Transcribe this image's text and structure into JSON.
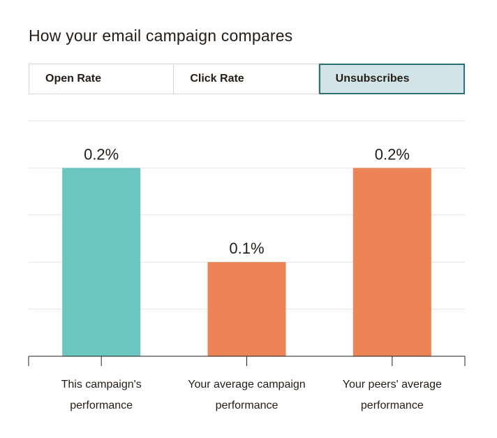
{
  "title": "How your email campaign compares",
  "tabs": [
    {
      "label": "Open Rate",
      "active": false
    },
    {
      "label": "Click Rate",
      "active": false
    },
    {
      "label": "Unsubscribes",
      "active": true
    }
  ],
  "colors": {
    "this_campaign": "#6cc5c1",
    "comparison": "#ec8456",
    "active_tab_bg": "#d1e5e9",
    "active_tab_border": "#2f6f76"
  },
  "chart_data": {
    "type": "bar",
    "categories": [
      [
        "This campaign's",
        "performance"
      ],
      [
        "Your average campaign",
        "performance"
      ],
      [
        "Your peers' average",
        "performance"
      ]
    ],
    "values": [
      0.2,
      0.1,
      0.2
    ],
    "data_labels": [
      "0.2%",
      "0.1%",
      "0.2%"
    ],
    "bar_colors": [
      "#6cc5c1",
      "#ec8456",
      "#ec8456"
    ],
    "ylim": [
      0,
      0.25
    ],
    "grid": true,
    "title": "",
    "xlabel": "",
    "ylabel": ""
  }
}
